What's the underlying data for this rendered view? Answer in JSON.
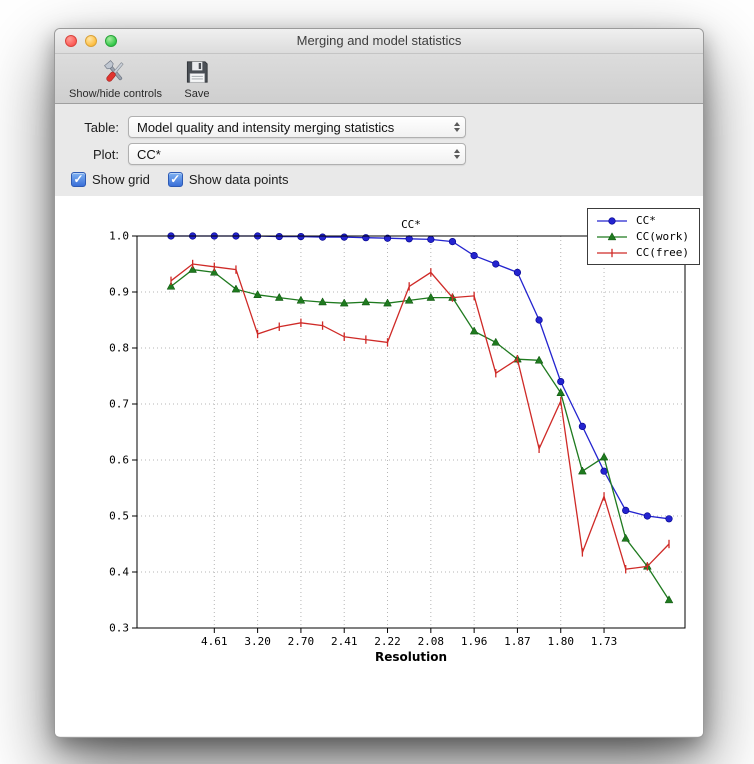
{
  "window": {
    "title": "Merging and model statistics"
  },
  "toolbar": {
    "show_hide_label": "Show/hide controls",
    "save_label": "Save"
  },
  "controls": {
    "table_label": "Table:",
    "table_value": "Model quality and intensity merging statistics",
    "plot_label": "Plot:",
    "plot_value": "CC*",
    "show_grid_label": "Show grid",
    "show_grid_checked": true,
    "show_data_points_label": "Show data points",
    "show_data_points_checked": true
  },
  "colors": {
    "checkbox_blue": "#3a6fd8",
    "cc_star_blue": "#2424cf",
    "cc_work_green": "#1f7a1f",
    "cc_free_red": "#cf2a27",
    "grid_gray": "#b5b5b5"
  },
  "chart_data": {
    "type": "line",
    "title": "CC*",
    "xlabel": "Resolution",
    "ylabel": "",
    "grid": true,
    "legend_position": "upper right",
    "ylim": [
      0.3,
      1.0
    ],
    "yticks": [
      0.3,
      0.4,
      0.5,
      0.6,
      0.7,
      0.8,
      0.9,
      1.0
    ],
    "x_count": 24,
    "xtick_positions": [
      2,
      4,
      6,
      8,
      10,
      12,
      14,
      16,
      18,
      20
    ],
    "xtick_labels": [
      "4.61",
      "3.20",
      "2.70",
      "2.41",
      "2.22",
      "2.08",
      "1.96",
      "1.87",
      "1.80",
      "1.73"
    ],
    "series": [
      {
        "name": "CC*",
        "color": "#2424cf",
        "marker": "circle",
        "values": [
          1.0,
          1.0,
          1.0,
          1.0,
          1.0,
          0.999,
          0.999,
          0.998,
          0.998,
          0.997,
          0.996,
          0.995,
          0.994,
          0.99,
          0.965,
          0.95,
          0.935,
          0.85,
          0.74,
          0.66,
          0.58,
          0.51,
          0.5,
          0.495
        ]
      },
      {
        "name": "CC(work)",
        "color": "#1f7a1f",
        "marker": "triangle",
        "values": [
          0.91,
          0.94,
          0.935,
          0.905,
          0.895,
          0.89,
          0.885,
          0.882,
          0.88,
          0.882,
          0.88,
          0.885,
          0.89,
          0.89,
          0.83,
          0.81,
          0.78,
          0.778,
          0.72,
          0.58,
          0.605,
          0.46,
          0.41,
          0.35
        ]
      },
      {
        "name": "CC(free)",
        "color": "#cf2a27",
        "marker": "vtick",
        "values": [
          0.92,
          0.95,
          0.945,
          0.94,
          0.825,
          0.838,
          0.845,
          0.84,
          0.82,
          0.815,
          0.81,
          0.91,
          0.935,
          0.89,
          0.893,
          0.755,
          0.78,
          0.62,
          0.705,
          0.435,
          0.535,
          0.405,
          0.41,
          0.45
        ]
      }
    ]
  }
}
